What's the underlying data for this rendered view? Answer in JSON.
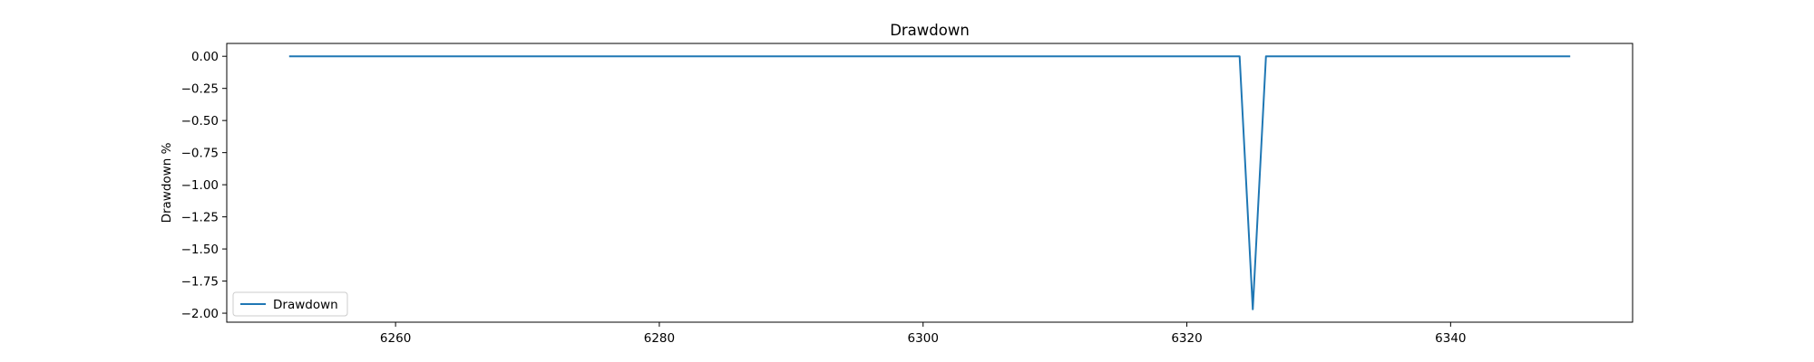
{
  "chart_data": {
    "type": "line",
    "title": "Drawdown",
    "xlabel": "",
    "ylabel": "Drawdown %",
    "xlim": [
      6247.2,
      6353.8
    ],
    "ylim": [
      -2.07,
      0.1
    ],
    "xticks": [
      6260,
      6280,
      6300,
      6320,
      6340
    ],
    "yticks": [
      0.0,
      -0.25,
      -0.5,
      -0.75,
      -1.0,
      -1.25,
      -1.5,
      -1.75,
      -2.0
    ],
    "ytick_labels": [
      "0.00",
      "−0.25",
      "−0.50",
      "−0.75",
      "−1.00",
      "−1.25",
      "−1.50",
      "−1.75",
      "−2.00"
    ],
    "grid": false,
    "legend_position": "lower-left",
    "series": [
      {
        "name": "Drawdown",
        "color": "#1f77b4",
        "x": [
          6252,
          6324,
          6325,
          6326,
          6349
        ],
        "y": [
          0.0,
          0.0,
          -1.97,
          0.0,
          0.0
        ]
      }
    ]
  }
}
